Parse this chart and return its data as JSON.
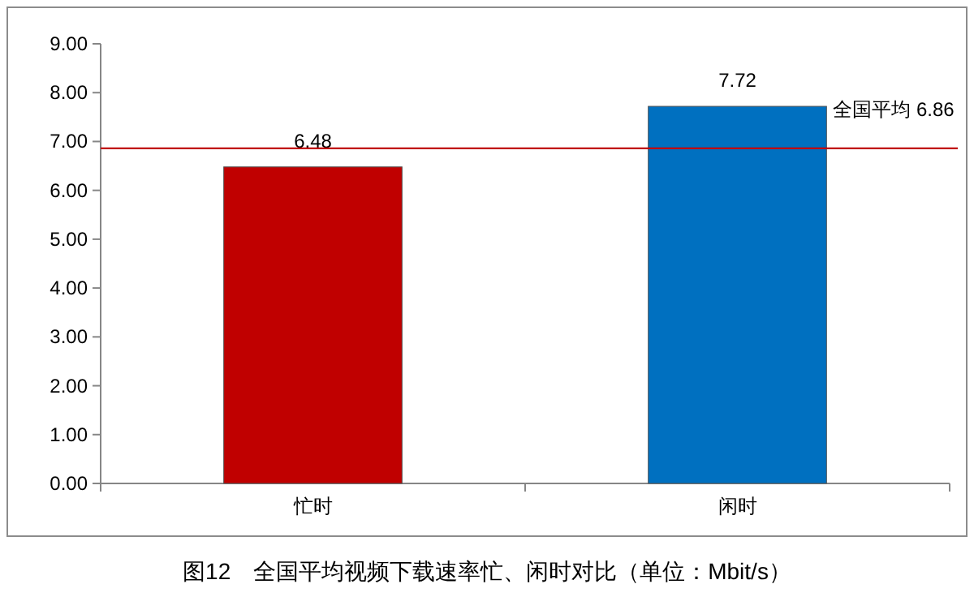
{
  "chart_data": {
    "type": "bar",
    "categories": [
      "忙时",
      "闲时"
    ],
    "values": [
      6.48,
      7.72
    ],
    "colors": [
      "#c00000",
      "#0070c0"
    ],
    "ylim": [
      0,
      9
    ],
    "yticks": [
      {
        "value": 0,
        "label": "0.00"
      },
      {
        "value": 1,
        "label": "1.00"
      },
      {
        "value": 2,
        "label": "2.00"
      },
      {
        "value": 3,
        "label": "3.00"
      },
      {
        "value": 4,
        "label": "4.00"
      },
      {
        "value": 5,
        "label": "5.00"
      },
      {
        "value": 6,
        "label": "6.00"
      },
      {
        "value": 7,
        "label": "7.00"
      },
      {
        "value": 8,
        "label": "8.00"
      },
      {
        "value": 9,
        "label": "9.00"
      }
    ],
    "data_labels": true,
    "ref_lines": [
      {
        "axis": "y",
        "value": 6.86,
        "label": "全国平均 6.86",
        "color": "#c00000"
      }
    ],
    "annotations": [
      "图12　全国平均视频下载速率忙、闲时对比（单位：Mbit/s）"
    ]
  }
}
